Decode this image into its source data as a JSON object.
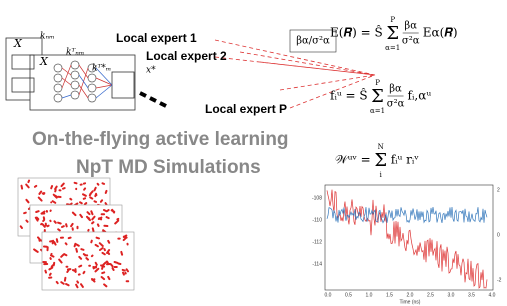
{
  "network": {
    "labels": [
      "X",
      "X",
      "kₙₘ",
      "kᵀₙₘ",
      "kᵀ*ₘ",
      "x*"
    ]
  },
  "experts": [
    "Local expert 1",
    "Local expert 2",
    "Local expert P"
  ],
  "weight": "βα/σ²α",
  "equations": [
    {
      "lhs": "E(𝑹) = Ŝ",
      "sum": "Σ",
      "top": "P",
      "bottom": "α=1",
      "num": "βα",
      "den": "σ²α",
      "tail": "Eα(𝑹)"
    },
    {
      "lhs": "fᵢᵘ = Ŝ",
      "sum": "Σ",
      "top": "P",
      "bottom": "α=1",
      "num": "βα",
      "den": "σ²α",
      "tail": "fᵢ,αᵘ"
    },
    {
      "lhs": "𝒲ᵘᵛ =",
      "sum": "Σ",
      "top": "N",
      "bottom": "i",
      "tail": "fᵢᵘ rᵢᵛ"
    }
  ],
  "headline": [
    "On-the-flying active learning",
    "NpT MD Simulations"
  ],
  "plot": {
    "yticks_left": [
      "-108",
      "-110",
      "-112",
      "-114"
    ],
    "yticks_right": [
      "2",
      "0",
      "-2"
    ],
    "xticks": [
      "0.0",
      "0.5",
      "1.0",
      "1.5",
      "2.0",
      "2.5",
      "3.0",
      "3.5",
      "4.0"
    ],
    "x_label": "Time (ns)"
  }
}
